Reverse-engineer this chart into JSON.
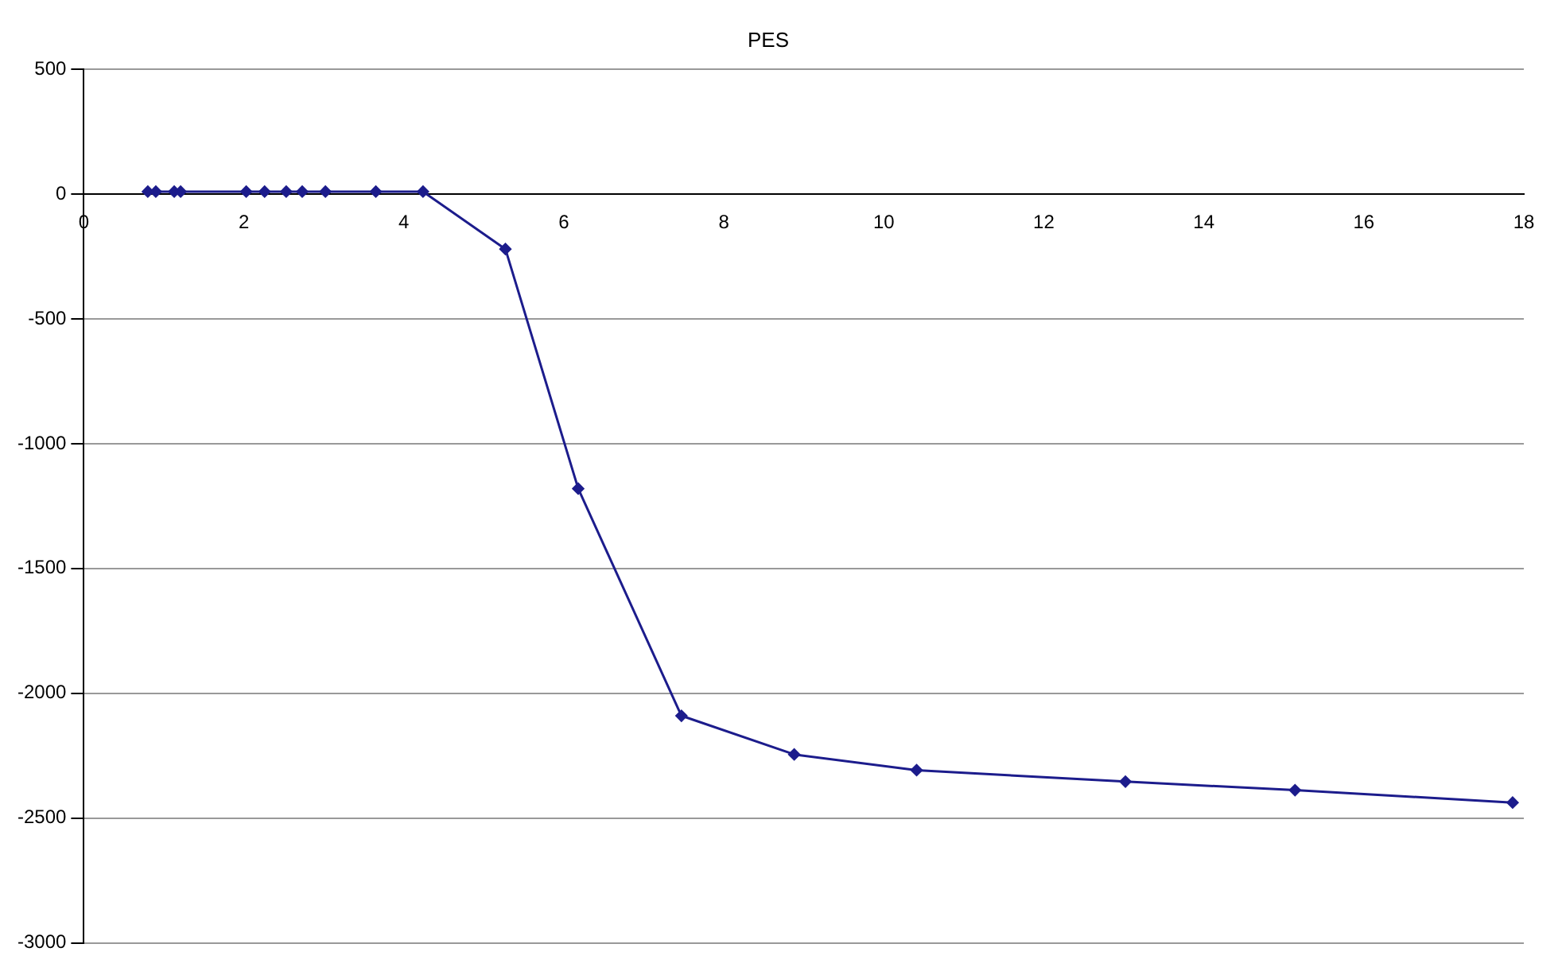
{
  "chart_data": {
    "type": "line",
    "title": "PES",
    "x": [
      0.8,
      0.9,
      1.13,
      1.21,
      2.03,
      2.26,
      2.53,
      2.73,
      3.02,
      3.65,
      4.24,
      5.27,
      6.18,
      7.47,
      8.88,
      10.41,
      13.02,
      15.14,
      17.86
    ],
    "series": [
      {
        "color": "#1c1c8c",
        "values": [
          10,
          10,
          10,
          10,
          10,
          10,
          10,
          10,
          10,
          10,
          10,
          -220,
          -1180,
          -2090,
          -2245,
          -2308,
          -2354,
          -2388,
          -2438
        ]
      }
    ],
    "xlim": [
      0,
      18
    ],
    "xticks": [
      0,
      2,
      4,
      6,
      8,
      10,
      12,
      14,
      16,
      18
    ],
    "ylim": [
      -3000,
      500
    ],
    "yticks": [
      -3000,
      -2500,
      -2000,
      -1500,
      -1000,
      -500,
      0,
      500
    ],
    "grid": "y",
    "legend": false,
    "marker": "diamond",
    "line_style": "solid"
  }
}
